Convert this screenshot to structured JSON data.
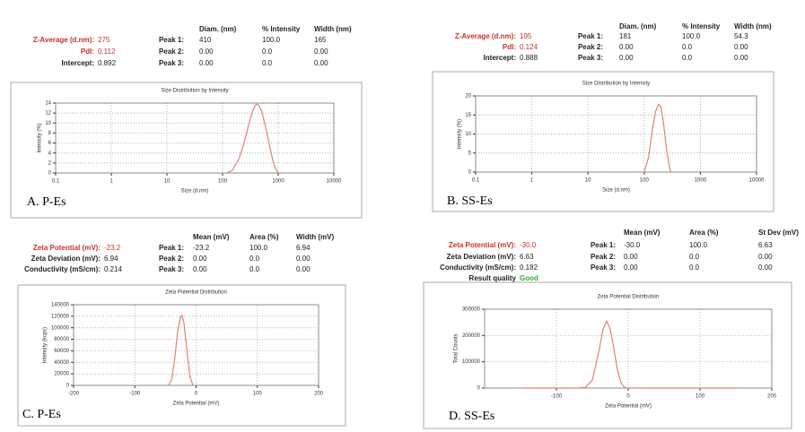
{
  "chart_data": [
    {
      "type": "line",
      "title": "Size Distribution by Intensity",
      "x_label": "Size (d.nm)",
      "y_label": "Intensity (%)",
      "caption": "A. P-Es",
      "xscale": "log",
      "grid": true,
      "color": "#dd8377",
      "x": [
        120,
        150,
        200,
        250,
        300,
        350,
        400,
        450,
        500,
        600,
        700,
        800,
        900,
        1000
      ],
      "values": [
        0,
        0.5,
        3,
        6.5,
        10,
        12.5,
        13.8,
        13.5,
        12.5,
        9,
        5.5,
        2.5,
        0.8,
        0
      ],
      "xlim": [
        0.1,
        10000
      ],
      "xticks": [
        0.1,
        1,
        10,
        100,
        1000,
        10000
      ],
      "ylim": [
        0,
        14
      ],
      "yticks": [
        0,
        2,
        4,
        6,
        8,
        10,
        12,
        14
      ]
    },
    {
      "type": "line",
      "title": "Size Distribution by Intensity",
      "x_label": "Size (d.nm)",
      "y_label": "Intensity (%)",
      "caption": "B. SS-Es",
      "xscale": "log",
      "grid": true,
      "color": "#dd8377",
      "x": [
        100,
        120,
        140,
        160,
        180,
        200,
        220,
        250,
        280,
        300
      ],
      "values": [
        0,
        4,
        11,
        16,
        17.8,
        17,
        13,
        6,
        1.5,
        0
      ],
      "xlim": [
        0.1,
        10000
      ],
      "xticks": [
        0.1,
        1,
        10,
        100,
        1000,
        10000
      ],
      "ylim": [
        0,
        20
      ],
      "yticks": [
        0,
        5,
        10,
        15,
        20
      ]
    },
    {
      "type": "line",
      "title": "Zeta Potential Distribution",
      "x_label": "Zeta Potential (mV)",
      "y_label": "Intensity (kcps)",
      "caption": "C. P-Es",
      "xscale": "linear",
      "grid": true,
      "color": "#dd8377",
      "x": [
        -45,
        -40,
        -35,
        -30,
        -25,
        -23,
        -20,
        -15,
        -10,
        -5
      ],
      "values": [
        0,
        10000,
        45000,
        95000,
        120000,
        122000,
        110000,
        60000,
        15000,
        0
      ],
      "xlim": [
        -200,
        200
      ],
      "xticks": [
        -200,
        -100,
        0,
        100,
        200
      ],
      "ylim": [
        0,
        140000
      ],
      "yticks": [
        0,
        20000,
        40000,
        60000,
        80000,
        100000,
        120000,
        140000
      ]
    },
    {
      "type": "line",
      "title": "Zeta Potential Distribution",
      "x_label": "Zeta Potential (mV)",
      "y_label": "Total Counts",
      "caption": "D. SS-Es",
      "xscale": "linear",
      "grid": true,
      "color": "#dd8377",
      "x": [
        -150,
        -100,
        -70,
        -60,
        -50,
        -40,
        -35,
        -30,
        -25,
        -20,
        -15,
        -10,
        -5,
        0,
        50,
        100,
        150
      ],
      "values": [
        0,
        0,
        0,
        2000,
        30000,
        150000,
        225000,
        255000,
        225000,
        150000,
        70000,
        20000,
        2000,
        0,
        0,
        0,
        0
      ],
      "xlim": [
        -200,
        200
      ],
      "xticks": [
        -100,
        0,
        100,
        200
      ],
      "ylim": [
        0,
        300000
      ],
      "yticks": [
        0,
        100000,
        200000,
        300000
      ]
    }
  ],
  "tables": [
    {
      "info": [
        {
          "label": "Z-Average (d.nm):",
          "value": "275",
          "color": "#c8322c"
        },
        {
          "label": "PdI:",
          "value": "0.112",
          "color": "#c8322c"
        },
        {
          "label": "Intercept:",
          "value": "0.892"
        }
      ],
      "header": [
        "Diam. (nm)",
        "% Intensity",
        "Width (nm)"
      ],
      "peaks": [
        [
          "Peak 1:",
          "410",
          "100.0",
          "165"
        ],
        [
          "Peak 2:",
          "0.00",
          "0.0",
          "0.00"
        ],
        [
          "Peak 3:",
          "0.00",
          "0.0",
          "0.00"
        ]
      ]
    },
    {
      "info": [
        {
          "label": "Z-Average (d.nm):",
          "value": "195",
          "color": "#c8322c"
        },
        {
          "label": "PdI:",
          "value": "0.124",
          "color": "#c8322c"
        },
        {
          "label": "Intercept:",
          "value": "0.888"
        }
      ],
      "header": [
        "Diam. (nm)",
        "% Intensity",
        "Width (nm)"
      ],
      "peaks": [
        [
          "Peak 1:",
          "181",
          "100.0",
          "54.3"
        ],
        [
          "Peak 2:",
          "0.00",
          "0.0",
          "0.00"
        ],
        [
          "Peak 3:",
          "0.00",
          "0.0",
          "0.00"
        ]
      ]
    },
    {
      "info": [
        {
          "label": "Zeta Potential (mV):",
          "value": "-23.2",
          "color": "#c8322c"
        },
        {
          "label": "Zeta Deviation (mV):",
          "value": "6.94"
        },
        {
          "label": "Conductivity (mS/cm):",
          "value": "0.214"
        }
      ],
      "header": [
        "Mean (mV)",
        "Area (%)",
        "Width (mV)"
      ],
      "peaks": [
        [
          "Peak 1:",
          "-23.2",
          "100.0",
          "6.94"
        ],
        [
          "Peak 2:",
          "0.00",
          "0.0",
          "0.00"
        ],
        [
          "Peak 3:",
          "0.00",
          "0.0",
          "0.00"
        ]
      ]
    },
    {
      "info": [
        {
          "label": "Zeta Potential (mV):",
          "value": "-30.0",
          "color": "#c8322c"
        },
        {
          "label": "Zeta Deviation (mV):",
          "value": "6.63"
        },
        {
          "label": "Conductivity (mS/cm):",
          "value": "0.182"
        },
        {
          "label": "Result quality",
          "value": "Good",
          "value_color": "#3aa63a"
        }
      ],
      "header": [
        "Mean (mV)",
        "Area (%)",
        "St Dev (mV)"
      ],
      "peaks": [
        [
          "Peak 1:",
          "-30.0",
          "100.0",
          "6.63"
        ],
        [
          "Peak 2:",
          "0.00",
          "0.0",
          "0.00"
        ],
        [
          "Peak 3:",
          "0.00",
          "0.0",
          "0.00"
        ]
      ]
    }
  ]
}
